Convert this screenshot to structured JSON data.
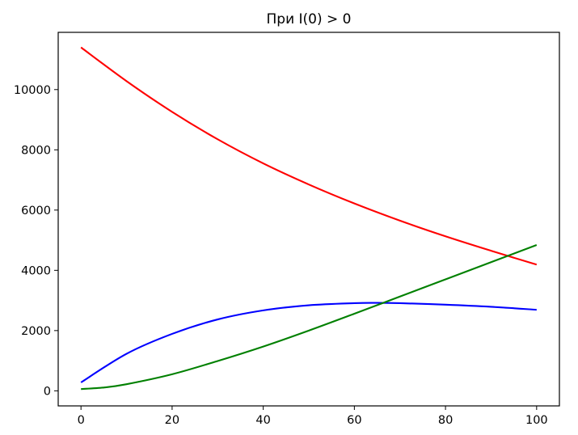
{
  "chart_data": {
    "type": "line",
    "title": "При I(0) > 0",
    "xlabel": "",
    "ylabel": "",
    "xlim": [
      -5,
      105
    ],
    "ylim": [
      -500,
      11900
    ],
    "xticks": [
      0,
      20,
      40,
      60,
      80,
      100
    ],
    "yticks": [
      0,
      2000,
      4000,
      6000,
      8000,
      10000
    ],
    "grid": false,
    "series": [
      {
        "color": "#ff0000",
        "x": [
          0,
          10,
          20,
          30,
          40,
          50,
          60,
          70,
          80,
          90,
          100
        ],
        "values": [
          11400,
          10280,
          9260,
          8350,
          7550,
          6850,
          6220,
          5650,
          5130,
          4650,
          4190
        ]
      },
      {
        "color": "#0000ff",
        "x": [
          0,
          10,
          20,
          30,
          40,
          50,
          60,
          65,
          70,
          80,
          90,
          100
        ],
        "values": [
          280,
          1230,
          1890,
          2370,
          2670,
          2840,
          2910,
          2920,
          2910,
          2860,
          2790,
          2690
        ]
      },
      {
        "color": "#008000",
        "x": [
          0,
          5,
          10,
          20,
          30,
          40,
          50,
          60,
          70,
          80,
          90,
          100
        ],
        "values": [
          60,
          110,
          220,
          550,
          990,
          1470,
          2000,
          2560,
          3130,
          3700,
          4270,
          4840
        ]
      }
    ]
  }
}
